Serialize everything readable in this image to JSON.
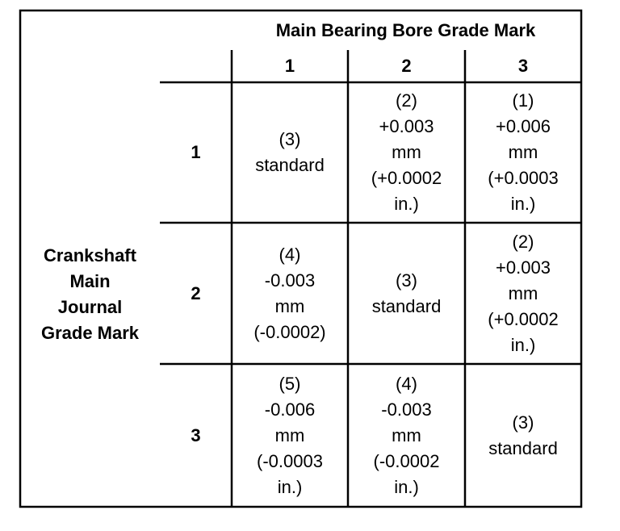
{
  "table": {
    "title": "Main Bearing Bore Grade Mark",
    "row_header": [
      "Crankshaft",
      "Main",
      "Journal",
      "Grade Mark"
    ],
    "columns": [
      "1",
      "2",
      "3"
    ],
    "rows": [
      {
        "label": "1",
        "cells": [
          [
            "(3)",
            "standard"
          ],
          [
            "(2)",
            "+0.003",
            "mm",
            "(+0.0002",
            "in.)"
          ],
          [
            "(1)",
            "+0.006",
            "mm",
            "(+0.0003",
            "in.)"
          ]
        ]
      },
      {
        "label": "2",
        "cells": [
          [
            "(4)",
            "-0.003",
            "mm",
            "(-0.0002)"
          ],
          [
            "(3)",
            "standard"
          ],
          [
            "(2)",
            "+0.003",
            "mm",
            "(+0.0002",
            "in.)"
          ]
        ]
      },
      {
        "label": "3",
        "cells": [
          [
            "(5)",
            "-0.006",
            "mm",
            "(-0.0003",
            "in.)"
          ],
          [
            "(4)",
            "-0.003",
            "mm",
            "(-0.0002",
            "in.)"
          ],
          [
            "(3)",
            "standard"
          ]
        ]
      }
    ]
  }
}
